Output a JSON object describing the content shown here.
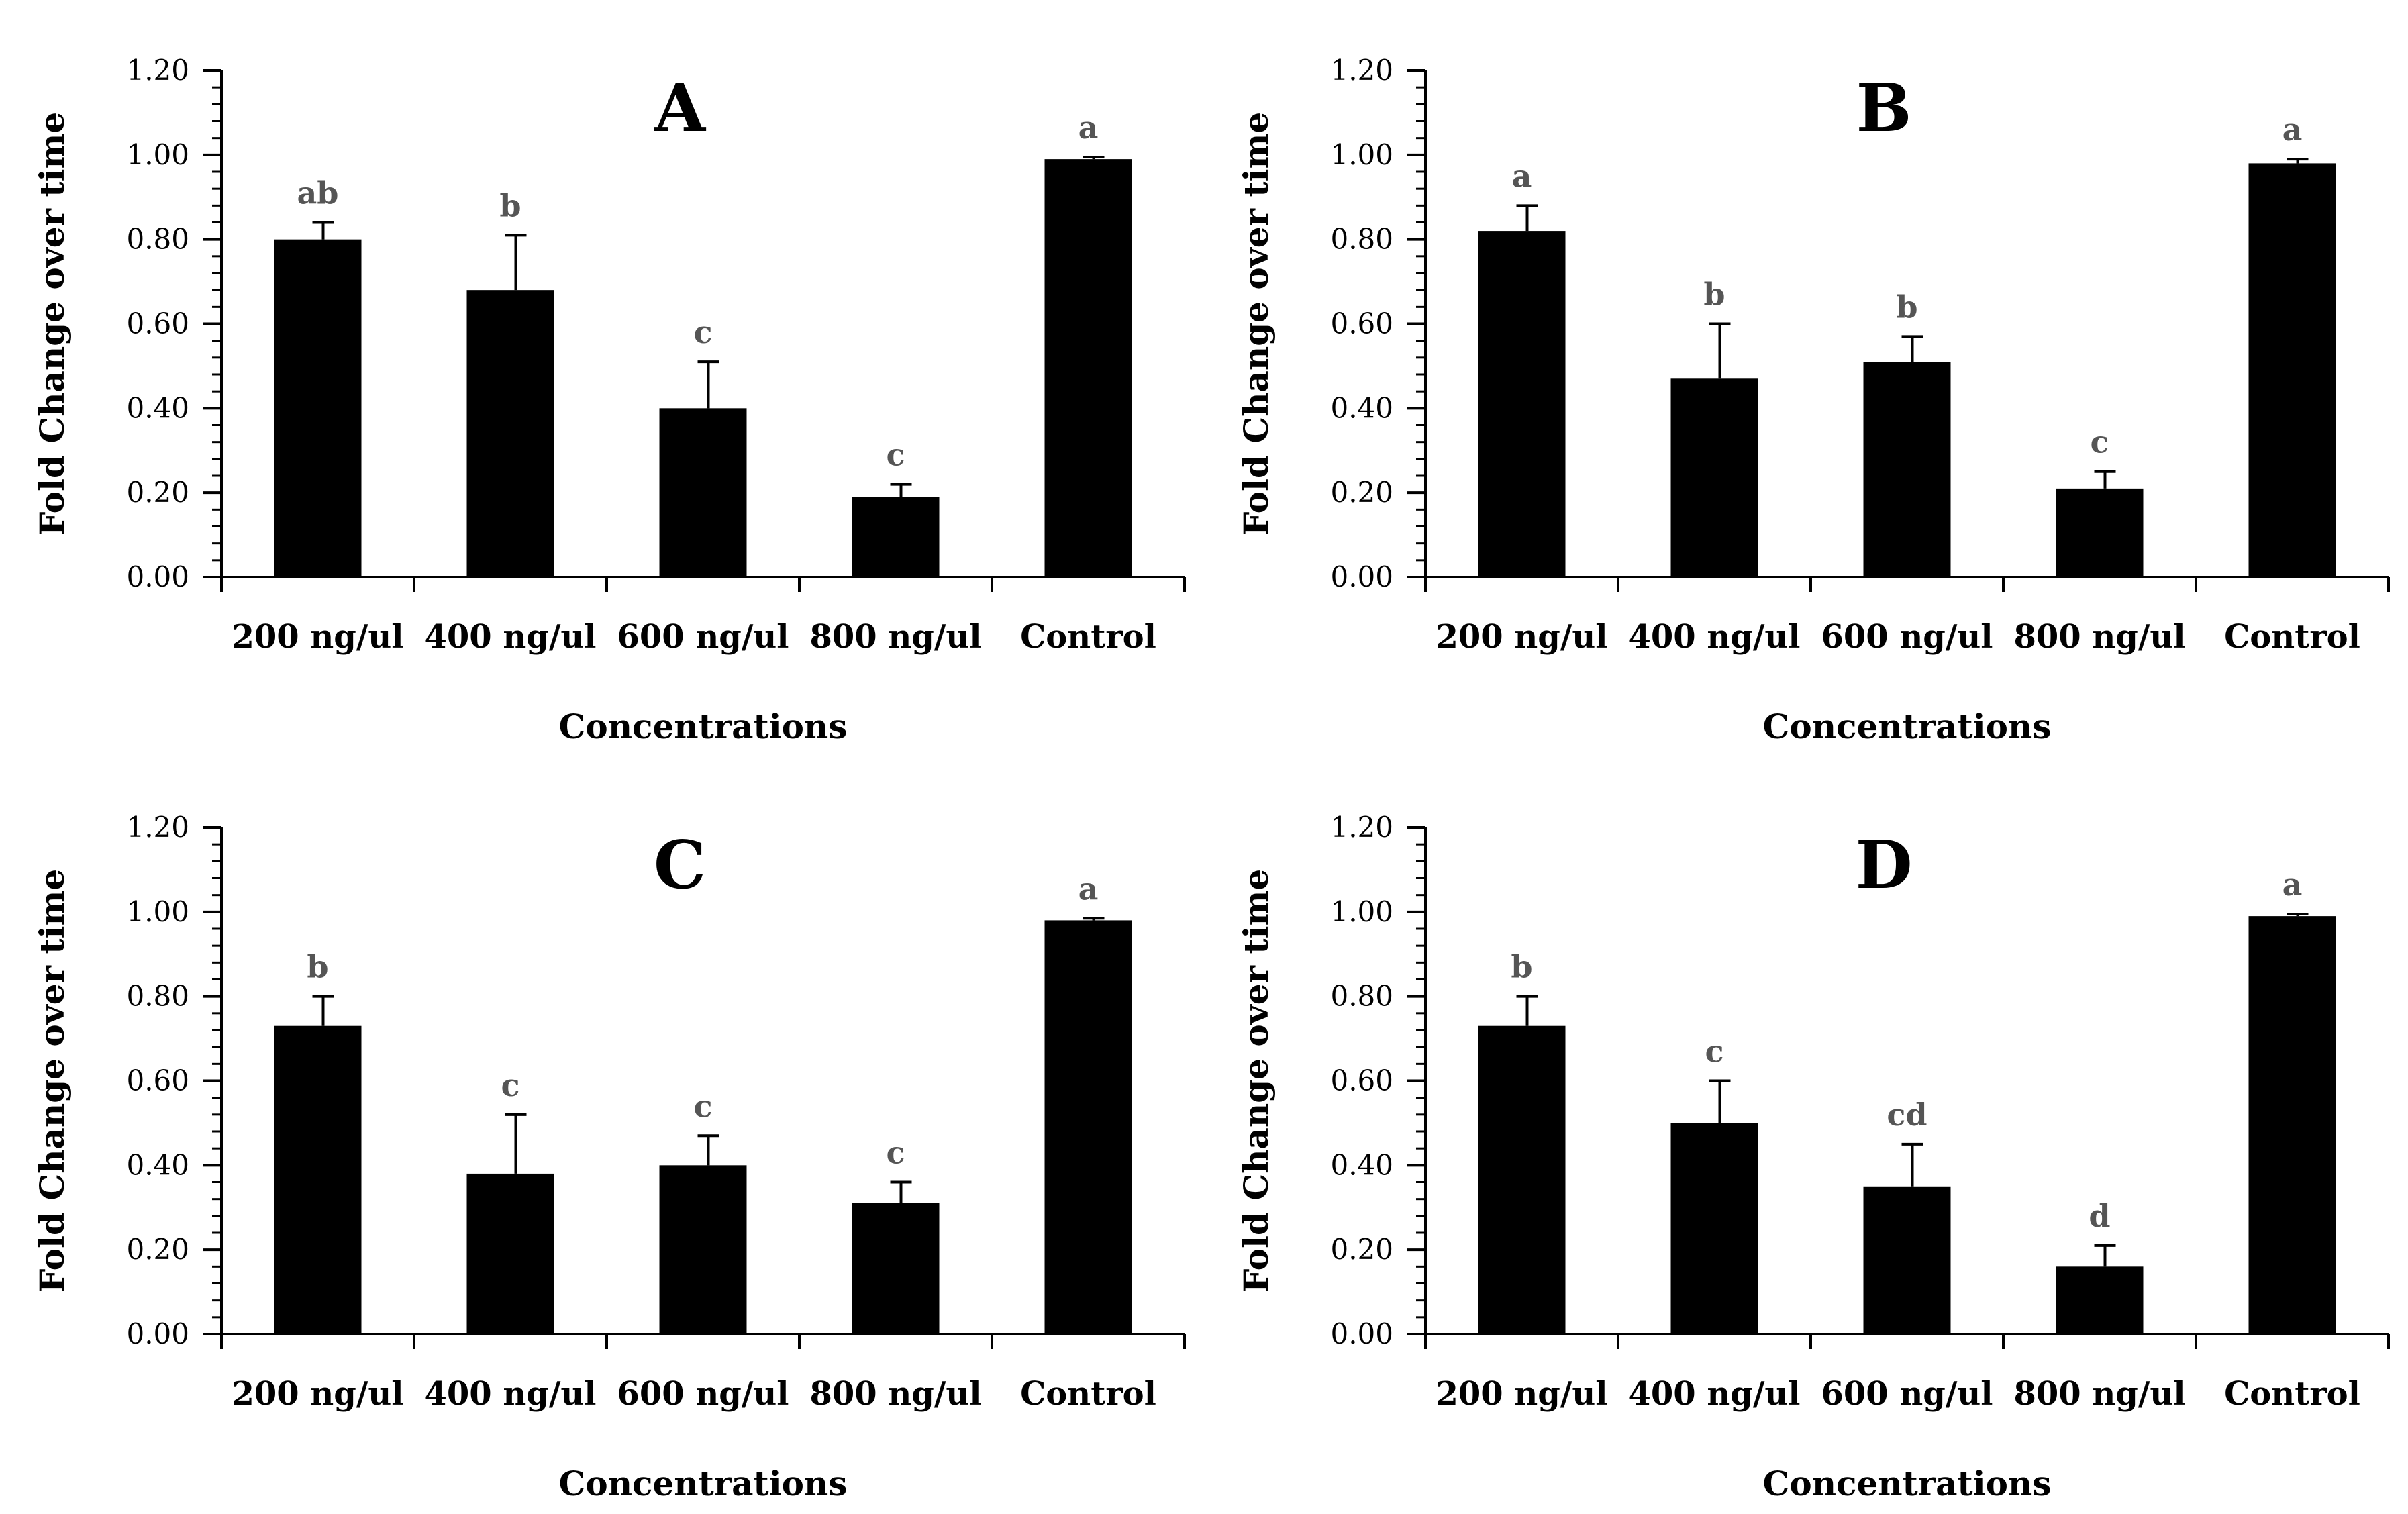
{
  "colors": {
    "bar": "#000000",
    "axis": "#000000",
    "sig_label": "#555555",
    "background": "#ffffff"
  },
  "chart_data": [
    {
      "type": "bar",
      "title": "A",
      "xlabel": "Concentrations",
      "ylabel": "Fold Change over time",
      "ylim": [
        0,
        1.2
      ],
      "yticks": [
        "0.00",
        "0.20",
        "0.40",
        "0.60",
        "0.80",
        "1.00",
        "1.20"
      ],
      "categories": [
        "200 ng/ul",
        "400 ng/ul",
        "600 ng/ul",
        "800 ng/ul",
        "Control"
      ],
      "values": [
        0.8,
        0.68,
        0.4,
        0.19,
        0.99
      ],
      "errors": [
        0.04,
        0.13,
        0.11,
        0.03,
        0.005
      ],
      "significance": [
        "ab",
        "b",
        "c",
        "c",
        "a"
      ]
    },
    {
      "type": "bar",
      "title": "B",
      "xlabel": "Concentrations",
      "ylabel": "Fold Change over time",
      "ylim": [
        0,
        1.2
      ],
      "yticks": [
        "0.00",
        "0.20",
        "0.40",
        "0.60",
        "0.80",
        "1.00",
        "1.20"
      ],
      "categories": [
        "200 ng/ul",
        "400 ng/ul",
        "600 ng/ul",
        "800 ng/ul",
        "Control"
      ],
      "values": [
        0.82,
        0.47,
        0.51,
        0.21,
        0.98
      ],
      "errors": [
        0.06,
        0.13,
        0.06,
        0.04,
        0.01
      ],
      "significance": [
        "a",
        "b",
        "b",
        "c",
        "a"
      ]
    },
    {
      "type": "bar",
      "title": "C",
      "xlabel": "Concentrations",
      "ylabel": "Fold Change over time",
      "ylim": [
        0,
        1.2
      ],
      "yticks": [
        "0.00",
        "0.20",
        "0.40",
        "0.60",
        "0.80",
        "1.00",
        "1.20"
      ],
      "categories": [
        "200 ng/ul",
        "400 ng/ul",
        "600 ng/ul",
        "800 ng/ul",
        "Control"
      ],
      "values": [
        0.73,
        0.38,
        0.4,
        0.31,
        0.98
      ],
      "errors": [
        0.07,
        0.14,
        0.07,
        0.05,
        0.005
      ],
      "significance": [
        "b",
        "c",
        "c",
        "c",
        "a"
      ]
    },
    {
      "type": "bar",
      "title": "D",
      "xlabel": "Concentrations",
      "ylabel": "Fold Change over time",
      "ylim": [
        0,
        1.2
      ],
      "yticks": [
        "0.00",
        "0.20",
        "0.40",
        "0.60",
        "0.80",
        "1.00",
        "1.20"
      ],
      "categories": [
        "200 ng/ul",
        "400 ng/ul",
        "600 ng/ul",
        "800 ng/ul",
        "Control"
      ],
      "values": [
        0.73,
        0.5,
        0.35,
        0.16,
        0.99
      ],
      "errors": [
        0.07,
        0.1,
        0.1,
        0.05,
        0.005
      ],
      "significance": [
        "b",
        "c",
        "cd",
        "d",
        "a"
      ]
    }
  ]
}
